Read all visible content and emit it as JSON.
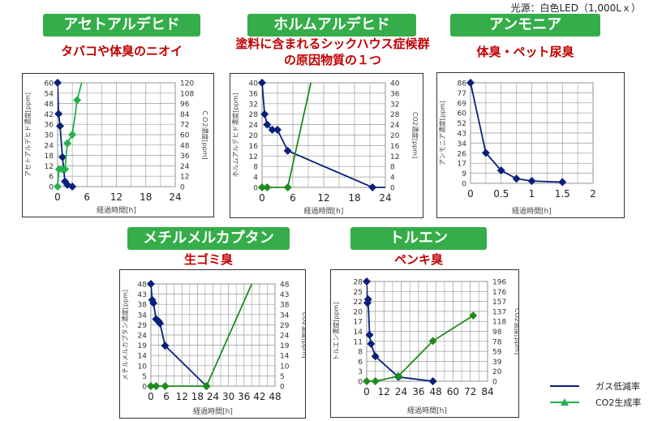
{
  "light_source": "光源：白色LED（1,000Lｘ）",
  "legend": {
    "gas": "ガス低減率",
    "co2": "CO2生成率",
    "gas_color": "#0a1f7a",
    "co2_color": "#1d8c1d"
  },
  "panels": [
    {
      "title": "アセトアルデヒド",
      "subtitle": [
        "タバコや体臭のニオイ"
      ]
    },
    {
      "title": "ホルムアルデヒド",
      "subtitle": [
        "塗料に含まれるシックハウス症候群",
        "の原因物質の１つ"
      ]
    },
    {
      "title": "アンモニア",
      "subtitle": [
        "体臭・ペット尿臭"
      ]
    },
    {
      "title": "メチルメルカプタン",
      "subtitle": [
        "生ゴミ臭"
      ]
    },
    {
      "title": "トルエン",
      "subtitle": [
        "ペンキ臭"
      ]
    }
  ],
  "chart_data": [
    {
      "type": "line",
      "xlabel": "経過時間[h]",
      "ylabel": "アセトアルデヒド濃度[ppm]",
      "y2label": "ＣＯ2濃度[ppm]",
      "xlim": [
        0,
        24
      ],
      "xticks": [
        "0",
        "6",
        "12",
        "18",
        "24"
      ],
      "ylim": [
        0,
        60
      ],
      "yticks": [
        "0",
        "6",
        "12",
        "18",
        "24",
        "30",
        "36",
        "42",
        "48",
        "54",
        "60"
      ],
      "y2lim": [
        0,
        120
      ],
      "y2ticks": [
        "0",
        "12",
        "24",
        "36",
        "48",
        "60",
        "72",
        "84",
        "96",
        "108",
        "120"
      ],
      "series": [
        {
          "name": "ガス低減率",
          "axis": "y",
          "points": [
            [
              0,
              60
            ],
            [
              0.2,
              42
            ],
            [
              0.5,
              35
            ],
            [
              1,
              17
            ],
            [
              1.5,
              3
            ],
            [
              2,
              1
            ],
            [
              3,
              0
            ]
          ]
        },
        {
          "name": "CO2生成率",
          "axis": "y2",
          "color": "#22b24c",
          "points": [
            [
              0,
              0
            ],
            [
              0.3,
              20
            ],
            [
              1,
              20
            ],
            [
              1.5,
              20
            ],
            [
              2,
              50
            ],
            [
              3,
              60
            ],
            [
              4,
              100
            ]
          ],
          "line_end": [
            4.9,
            120
          ]
        }
      ]
    },
    {
      "type": "line",
      "xlabel": "経過時間[h]",
      "ylabel": "ホルムアルデヒド濃度[ppm]",
      "y2label": "CO2濃度[ppm]",
      "xlim": [
        0,
        24
      ],
      "xticks": [
        "0",
        "6",
        "12",
        "18",
        "24"
      ],
      "ylim": [
        0,
        40
      ],
      "yticks": [
        "0",
        "4",
        "8",
        "12",
        "16",
        "20",
        "24",
        "28",
        "32",
        "36",
        "40"
      ],
      "y2lim": [
        0,
        40
      ],
      "y2ticks": [
        "0",
        "4",
        "8",
        "12",
        "16",
        "20",
        "24",
        "28",
        "32",
        "36",
        "40"
      ],
      "series": [
        {
          "name": "ガス低減率",
          "axis": "y",
          "points": [
            [
              0,
              40
            ],
            [
              0.5,
              28
            ],
            [
              1,
              24
            ],
            [
              2,
              22
            ],
            [
              3,
              22
            ],
            [
              5,
              14
            ],
            [
              21.5,
              0
            ]
          ],
          "line_end": [
            24,
            0
          ]
        },
        {
          "name": "CO2生成率",
          "axis": "y2",
          "points": [
            [
              0,
              0
            ],
            [
              1,
              0
            ],
            [
              5,
              0
            ]
          ],
          "line_end": [
            9.5,
            40
          ]
        }
      ]
    },
    {
      "type": "line",
      "xlabel": "経過時間[h]",
      "ylabel": "アンモニア濃度[ppm]",
      "xlim": [
        0,
        2
      ],
      "xticks": [
        "0",
        "0.5",
        "1",
        "1.5",
        "2"
      ],
      "ylim": [
        0,
        86
      ],
      "yticks": [
        "0",
        "9",
        "17",
        "26",
        "34",
        "43",
        "52",
        "60",
        "69",
        "77",
        "86"
      ],
      "series": [
        {
          "name": "ガス低減率",
          "axis": "y",
          "points": [
            [
              0,
              86
            ],
            [
              0.25,
              26
            ],
            [
              0.5,
              11
            ],
            [
              0.75,
              4
            ],
            [
              1,
              2
            ],
            [
              1.5,
              1
            ]
          ]
        }
      ]
    },
    {
      "type": "line",
      "xlabel": "経過時間[h]",
      "ylabel": "メチルメルカプタン濃度[ppm]",
      "y2label": "CO2濃度[ppm]",
      "xlim": [
        0,
        48
      ],
      "xticks": [
        "0",
        "6",
        "12",
        "18",
        "24",
        "30",
        "36",
        "42",
        "48"
      ],
      "ylim": [
        0,
        48
      ],
      "yticks": [
        "0",
        "5",
        "10",
        "14",
        "19",
        "24",
        "29",
        "34",
        "38",
        "43",
        "48"
      ],
      "y2lim": [
        0,
        48
      ],
      "y2ticks": [
        "0",
        "5",
        "10",
        "14",
        "19",
        "24",
        "29",
        "34",
        "38",
        "43",
        "48"
      ],
      "series": [
        {
          "name": "ガス低減率",
          "axis": "y",
          "points": [
            [
              0,
              48
            ],
            [
              0.5,
              40.5
            ],
            [
              1,
              39
            ],
            [
              2,
              31.5
            ],
            [
              3,
              30.5
            ],
            [
              3.5,
              29.5
            ],
            [
              5.5,
              19
            ],
            [
              21.5,
              0
            ]
          ]
        },
        {
          "name": "CO2生成率",
          "axis": "y2",
          "points": [
            [
              0,
              0
            ],
            [
              2,
              0
            ],
            [
              5.5,
              0
            ],
            [
              21.5,
              0
            ]
          ],
          "line_end": [
            39,
            48
          ]
        }
      ]
    },
    {
      "type": "line",
      "xlabel": "経過時間[h]",
      "ylabel": "トルエン濃度[ppm]",
      "y2label": "CO2濃度[ppm]",
      "xlim": [
        0,
        84
      ],
      "xticks": [
        "0",
        "12",
        "24",
        "36",
        "48",
        "60",
        "72",
        "84"
      ],
      "ylim": [
        0,
        28
      ],
      "yticks": [
        "0",
        "3",
        "6",
        "8",
        "11",
        "14",
        "17",
        "20",
        "22",
        "25",
        "28"
      ],
      "y2lim": [
        0,
        196
      ],
      "y2ticks": [
        "0",
        "20",
        "39",
        "59",
        "78",
        "98",
        "118",
        "137",
        "157",
        "176",
        "196"
      ],
      "series": [
        {
          "name": "ガス低減率",
          "axis": "y",
          "points": [
            [
              0,
              28
            ],
            [
              0.5,
              22
            ],
            [
              1,
              23
            ],
            [
              2,
              13
            ],
            [
              3,
              10.5
            ],
            [
              6,
              7
            ],
            [
              22,
              1.2
            ],
            [
              46,
              0
            ]
          ]
        },
        {
          "name": "CO2生成率",
          "axis": "y2",
          "points": [
            [
              0,
              0
            ],
            [
              6,
              0
            ],
            [
              22,
              10
            ],
            [
              46,
              79
            ],
            [
              74,
              129
            ]
          ]
        }
      ]
    }
  ]
}
